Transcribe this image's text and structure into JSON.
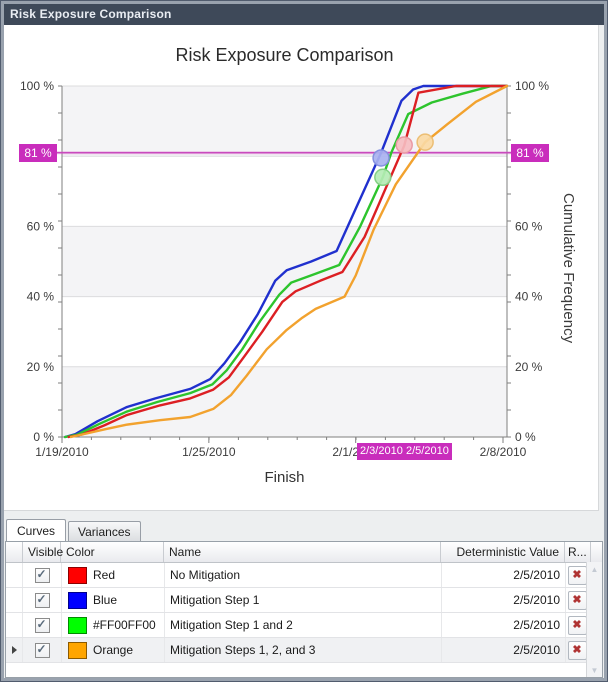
{
  "window": {
    "title": "Risk Exposure Comparison"
  },
  "chart": {
    "title": "Risk Exposure Comparison",
    "x_axis_title": "Finish",
    "y_axis_title": "Cumulative Frequency",
    "threshold": {
      "label": "81 %",
      "value": 81,
      "color": "#c92dbc",
      "line_color": "#d45cc8"
    },
    "crossing_labels": [
      "2/3/2010",
      "2/5/2010"
    ],
    "chart_data": {
      "type": "line",
      "title": "Risk Exposure Comparison",
      "xlabel": "Finish",
      "ylabel": "Cumulative Frequency",
      "ylim": [
        0,
        100
      ],
      "x_tick_labels": [
        "1/19/2010",
        "1/25/2010",
        "2/1/2010",
        "2/8/2010"
      ],
      "x_tick_positions_pct": [
        0,
        33,
        66,
        99.1
      ],
      "y_tick_values": [
        0,
        20,
        40,
        60,
        100
      ],
      "y_tick_suffix": " %",
      "grid": "horizontal gray bands every 20%",
      "x_unit": "percent of axis width (date axis 1/19/2010 - 2/8/2010)",
      "threshold_line": {
        "value": 81,
        "color": "#d45cc8"
      },
      "series": [
        {
          "name": "Mitigation Step 1",
          "color": "#2030ce",
          "points": [
            [
              0.7,
              0
            ],
            [
              3,
              0.8
            ],
            [
              8,
              4.5
            ],
            [
              14.5,
              8.5
            ],
            [
              21,
              11
            ],
            [
              28.8,
              13.7
            ],
            [
              33.3,
              16.5
            ],
            [
              36.5,
              21
            ],
            [
              40,
              27
            ],
            [
              44,
              35
            ],
            [
              47.9,
              44.5
            ],
            [
              50.5,
              47.5
            ],
            [
              56,
              50
            ],
            [
              61.7,
              53
            ],
            [
              66,
              65
            ],
            [
              71.7,
              81
            ],
            [
              76.3,
              95.8
            ],
            [
              78.9,
              99
            ],
            [
              81.2,
              100
            ],
            [
              100,
              100
            ]
          ]
        },
        {
          "name": "Mitigation Step 1 and 2",
          "color": "#2dc42d",
          "points": [
            [
              0.7,
              0
            ],
            [
              3.5,
              0.7
            ],
            [
              8.5,
              3.8
            ],
            [
              14.5,
              7.2
            ],
            [
              21.5,
              10
            ],
            [
              28.8,
              12.5
            ],
            [
              33.8,
              15
            ],
            [
              37,
              19
            ],
            [
              40.5,
              25
            ],
            [
              44.5,
              33
            ],
            [
              48.8,
              40.5
            ],
            [
              51.5,
              44
            ],
            [
              57,
              46.5
            ],
            [
              62.3,
              49
            ],
            [
              67,
              60
            ],
            [
              72.1,
              74
            ],
            [
              74,
              81
            ],
            [
              77.8,
              92
            ],
            [
              83.1,
              95.3
            ],
            [
              90,
              97.8
            ],
            [
              96.5,
              100
            ],
            [
              100,
              100
            ]
          ]
        },
        {
          "name": "No Mitigation",
          "color": "#dc1f23",
          "points": [
            [
              1.5,
              0
            ],
            [
              4.5,
              0.7
            ],
            [
              9.5,
              3.3
            ],
            [
              14.5,
              6.2
            ],
            [
              22,
              9
            ],
            [
              28.8,
              11
            ],
            [
              34,
              13.5
            ],
            [
              37.5,
              17
            ],
            [
              41,
              23
            ],
            [
              45,
              30
            ],
            [
              49.5,
              38.5
            ],
            [
              52.5,
              41.5
            ],
            [
              58,
              44.5
            ],
            [
              63,
              47
            ],
            [
              68,
              57
            ],
            [
              76.9,
              83
            ],
            [
              80.1,
              98.1
            ],
            [
              88.5,
              100
            ],
            [
              100,
              100
            ]
          ]
        },
        {
          "name": "Mitigation Steps 1, 2, and 3",
          "color": "#f2a22e",
          "points": [
            [
              2,
              0
            ],
            [
              5.5,
              1
            ],
            [
              10,
              2.3
            ],
            [
              14.5,
              3.5
            ],
            [
              22,
              4.8
            ],
            [
              28.8,
              5.7
            ],
            [
              34,
              8
            ],
            [
              38,
              12
            ],
            [
              41.5,
              17.5
            ],
            [
              46,
              25
            ],
            [
              50.5,
              30.5
            ],
            [
              54,
              34
            ],
            [
              57,
              36.5
            ],
            [
              63.5,
              40
            ],
            [
              66,
              46
            ],
            [
              70,
              59
            ],
            [
              75,
              72
            ],
            [
              81.6,
              84
            ],
            [
              86.5,
              89
            ],
            [
              93,
              95.5
            ],
            [
              100,
              100
            ]
          ]
        }
      ],
      "markers": [
        {
          "series": "Mitigation Step 1",
          "x": 71.7,
          "y": 79.5,
          "fill": "#a9b2f0",
          "stroke": "#8490e0"
        },
        {
          "series": "Mitigation Step 1 and 2",
          "x": 72.1,
          "y": 74,
          "fill": "#b5ecb5",
          "stroke": "#84d084"
        },
        {
          "series": "No Mitigation",
          "x": 76.9,
          "y": 83.2,
          "fill": "#f5bcc0",
          "stroke": "#ea9aa4"
        },
        {
          "series": "Mitigation Steps 1, 2, and 3",
          "x": 81.6,
          "y": 84,
          "fill": "#fad9a4",
          "stroke": "#ecbe74"
        }
      ]
    }
  },
  "tabs": [
    {
      "label": "Curves",
      "active": true
    },
    {
      "label": "Variances",
      "active": false
    }
  ],
  "grid": {
    "columns": {
      "visible": "Visible",
      "color": "Color",
      "name": "Name",
      "deterministic": "Deterministic Value",
      "remove": "R..."
    },
    "rows": [
      {
        "checked": true,
        "swatch": "#FF0000",
        "color_label": "Red",
        "name": "No Mitigation",
        "deterministic": "2/5/2010"
      },
      {
        "checked": true,
        "swatch": "#0000FF",
        "color_label": "Blue",
        "name": "Mitigation Step 1",
        "deterministic": "2/5/2010"
      },
      {
        "checked": true,
        "swatch": "#00FF00",
        "color_label": "#FF00FF00",
        "name": "Mitigation Step 1 and 2",
        "deterministic": "2/5/2010"
      },
      {
        "checked": true,
        "swatch": "#FFA500",
        "color_label": "Orange",
        "name": "Mitigation Steps 1, 2, and 3",
        "deterministic": "2/5/2010",
        "selected": true
      }
    ]
  }
}
